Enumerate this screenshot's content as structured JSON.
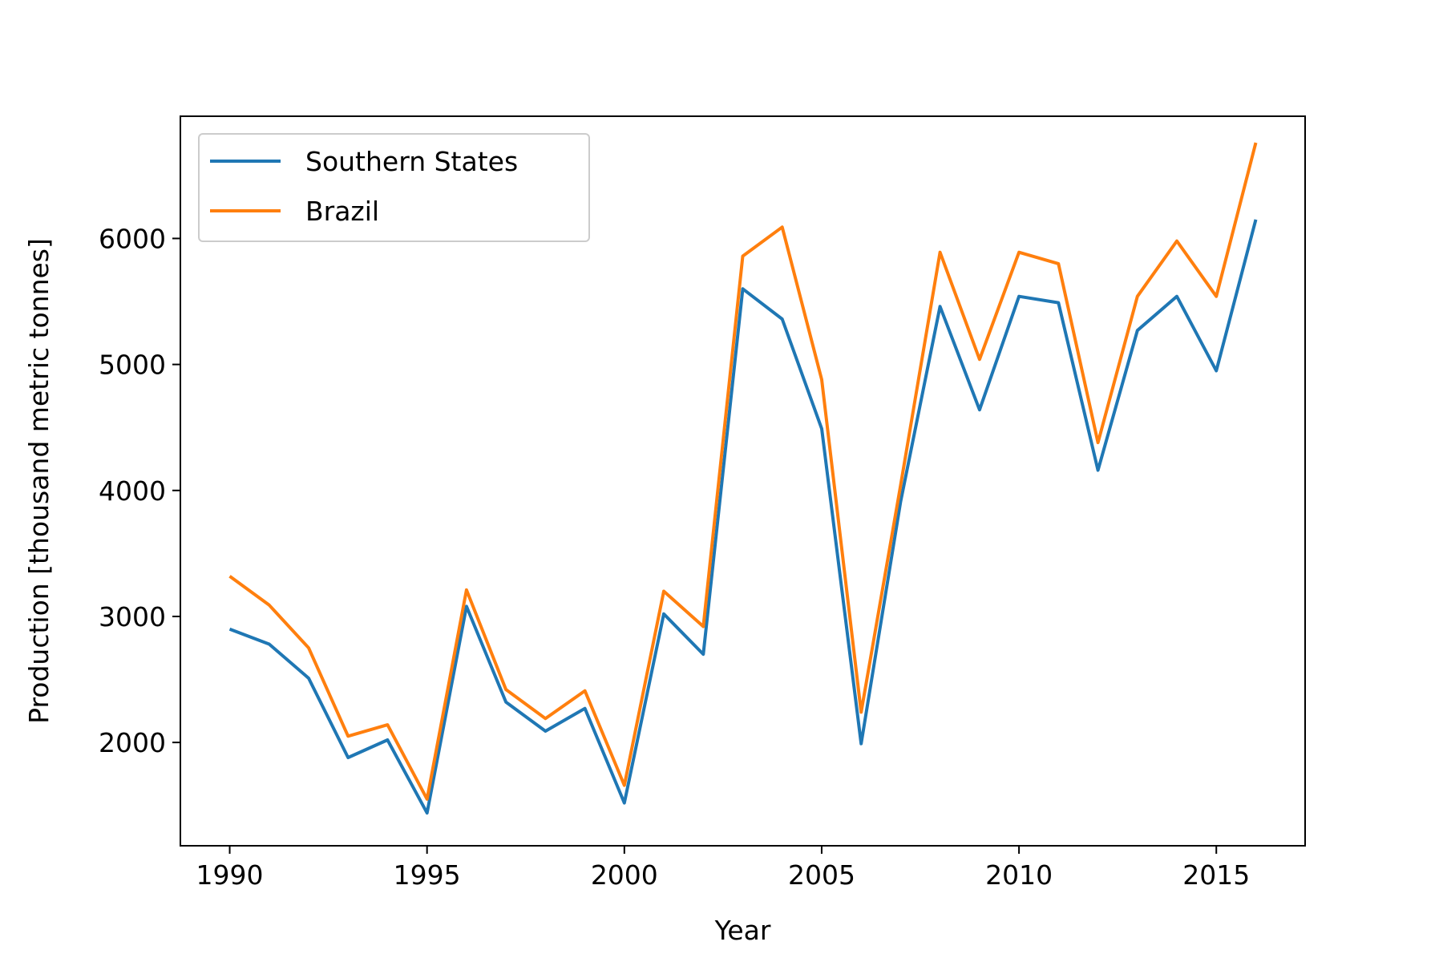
{
  "chart_data": {
    "type": "line",
    "title": "",
    "xlabel": "Year",
    "ylabel": "Production [thousand metric tonnes]",
    "xlim": [
      1988.75,
      2017.25
    ],
    "ylim": [
      1180,
      6970
    ],
    "x_ticks": [
      1990,
      1995,
      2000,
      2005,
      2010,
      2015
    ],
    "y_ticks": [
      2000,
      3000,
      4000,
      5000,
      6000
    ],
    "grid": false,
    "legend_position": "top-left",
    "x": [
      1990,
      1991,
      1992,
      1993,
      1994,
      1995,
      1996,
      1997,
      1998,
      1999,
      2000,
      2001,
      2002,
      2003,
      2004,
      2005,
      2006,
      2007,
      2008,
      2009,
      2010,
      2011,
      2012,
      2013,
      2014,
      2015,
      2016
    ],
    "series": [
      {
        "name": "Southern States",
        "color": "#1f77b4",
        "values": [
          2900,
          2780,
          2510,
          1880,
          2020,
          1440,
          3080,
          2320,
          2090,
          2270,
          1520,
          3020,
          2700,
          5600,
          5360,
          4490,
          1990,
          3910,
          5460,
          4640,
          5540,
          5490,
          4160,
          5270,
          5540,
          4950,
          6150
        ]
      },
      {
        "name": "Brazil",
        "color": "#ff7f0e",
        "values": [
          3320,
          3090,
          2750,
          2050,
          2140,
          1550,
          3210,
          2420,
          2190,
          2410,
          1660,
          3200,
          2920,
          5860,
          6090,
          4880,
          2240,
          4040,
          5890,
          5040,
          5890,
          5800,
          4380,
          5540,
          5980,
          5540,
          6760
        ]
      }
    ]
  }
}
